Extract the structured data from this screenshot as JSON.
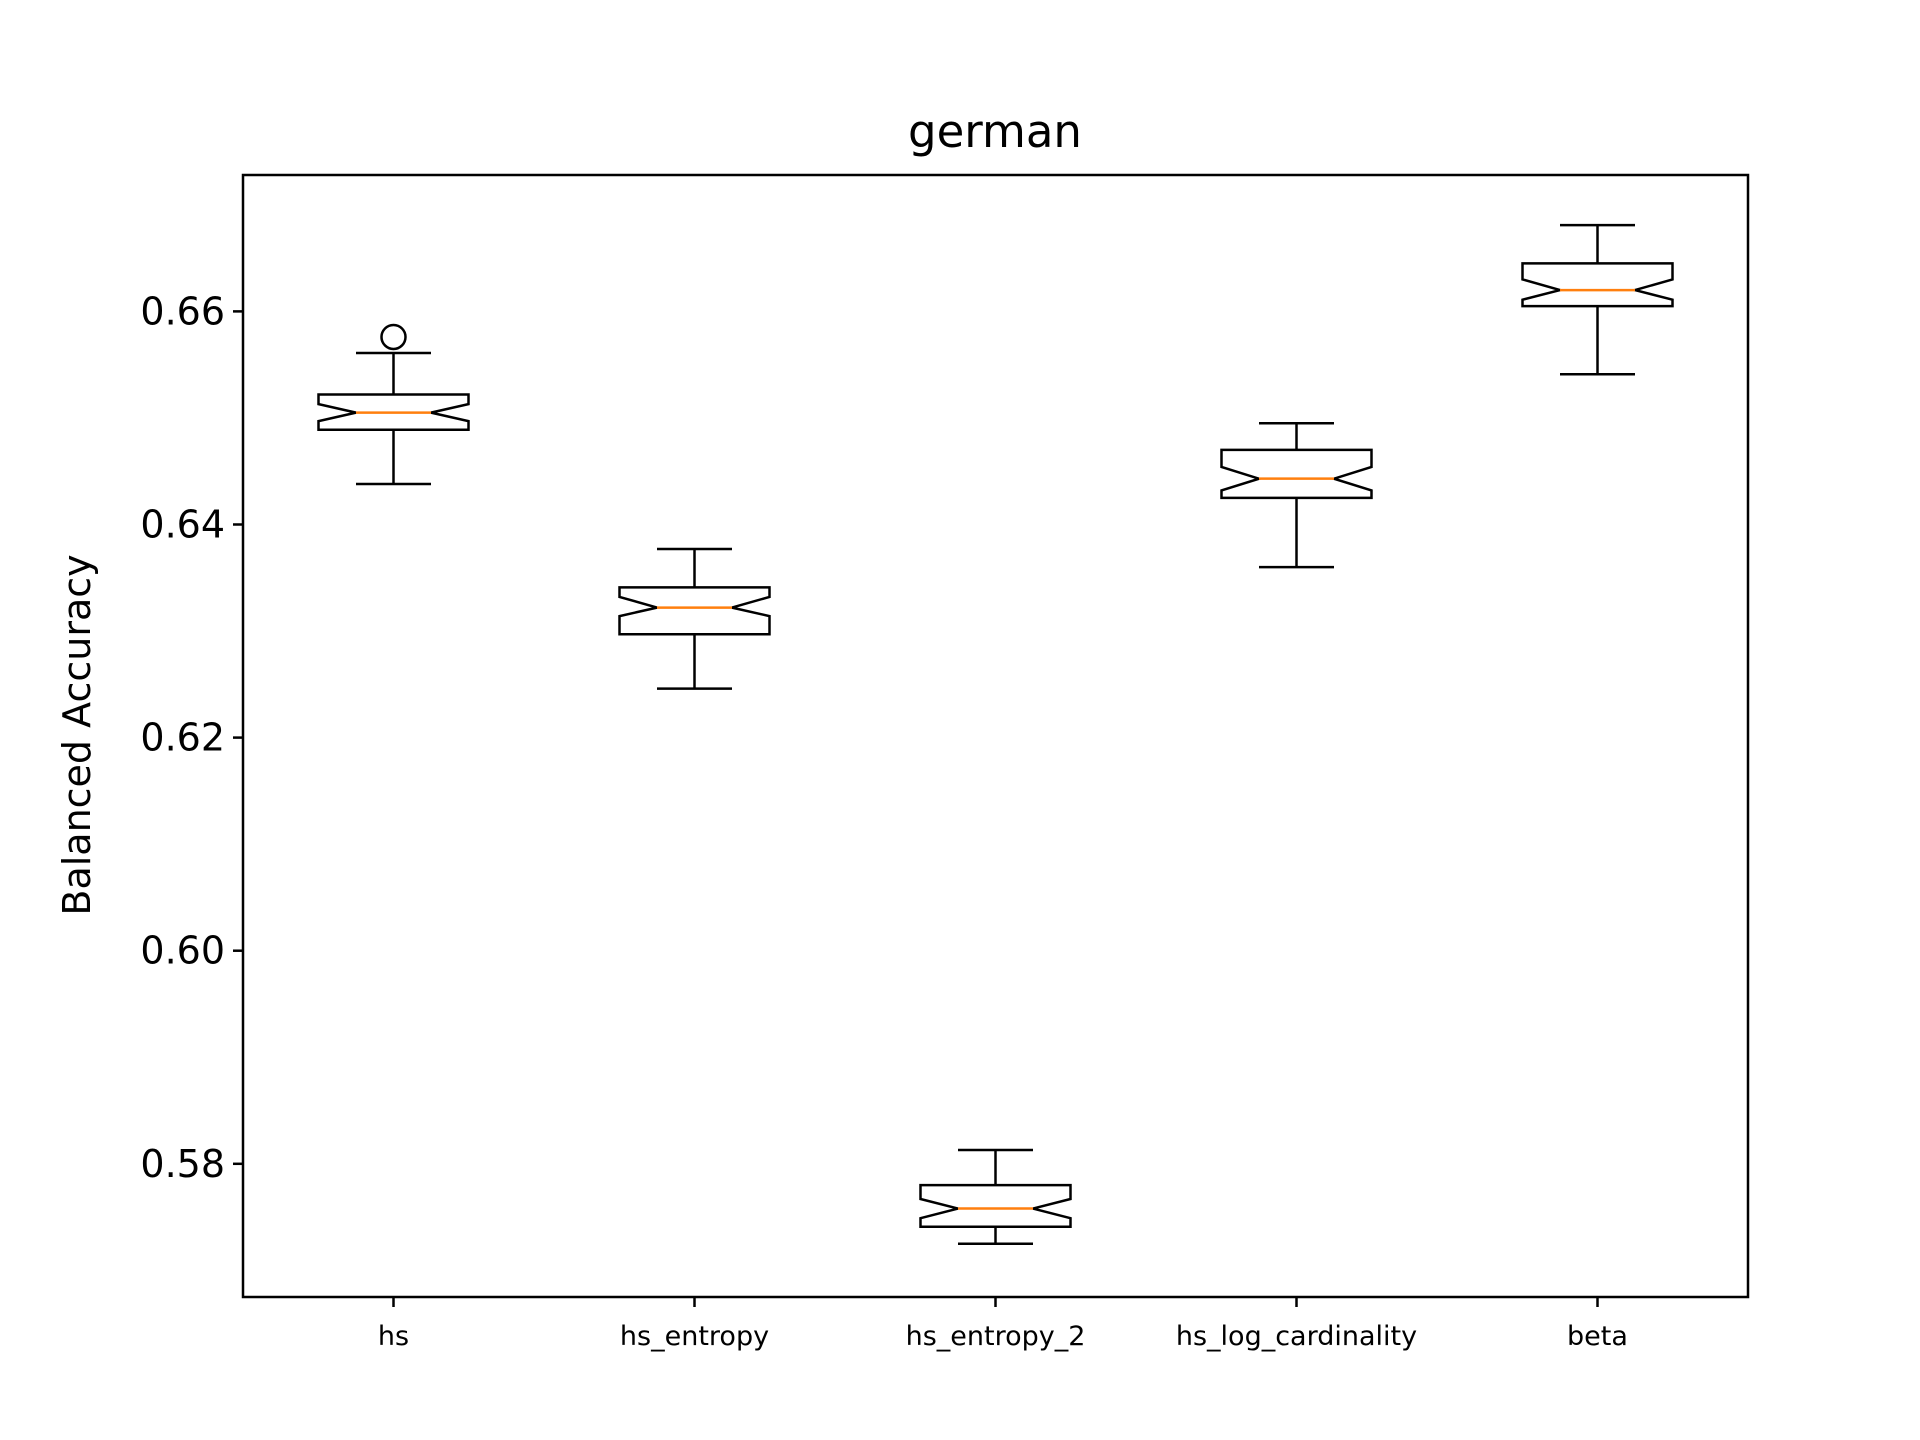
{
  "chart_data": {
    "type": "boxplot",
    "title": "german",
    "ylabel": "Balanced Accuracy",
    "xlabel": "",
    "notched": true,
    "ylim": [
      0.5675,
      0.6728
    ],
    "yticks": [
      0.58,
      0.6,
      0.62,
      0.64,
      0.66
    ],
    "ytick_labels": [
      "0.58",
      "0.60",
      "0.62",
      "0.64",
      "0.66"
    ],
    "grid": false,
    "colors": {
      "box": "#000000",
      "median": "#ff7f0e",
      "whisker": "#000000"
    },
    "categories": [
      "hs",
      "hs_entropy",
      "hs_entropy_2",
      "hs_log_cardinality",
      "beta"
    ],
    "boxes": [
      {
        "whisker_low": 0.6438,
        "q1": 0.6489,
        "median": 0.6505,
        "q3": 0.6522,
        "whisker_high": 0.6561,
        "notch_low": 0.6497,
        "notch_high": 0.6513,
        "outliers": [
          0.6576
        ]
      },
      {
        "whisker_low": 0.6246,
        "q1": 0.6297,
        "median": 0.6322,
        "q3": 0.6341,
        "whisker_high": 0.6377,
        "notch_low": 0.6314,
        "notch_high": 0.6332,
        "outliers": []
      },
      {
        "whisker_low": 0.5725,
        "q1": 0.5741,
        "median": 0.5758,
        "q3": 0.578,
        "whisker_high": 0.5813,
        "notch_low": 0.5749,
        "notch_high": 0.5767,
        "outliers": []
      },
      {
        "whisker_low": 0.636,
        "q1": 0.6425,
        "median": 0.6443,
        "q3": 0.647,
        "whisker_high": 0.6495,
        "notch_low": 0.6432,
        "notch_high": 0.6454,
        "outliers": []
      },
      {
        "whisker_low": 0.6541,
        "q1": 0.6605,
        "median": 0.662,
        "q3": 0.6645,
        "whisker_high": 0.6681,
        "notch_low": 0.6611,
        "notch_high": 0.663,
        "outliers": []
      }
    ]
  }
}
